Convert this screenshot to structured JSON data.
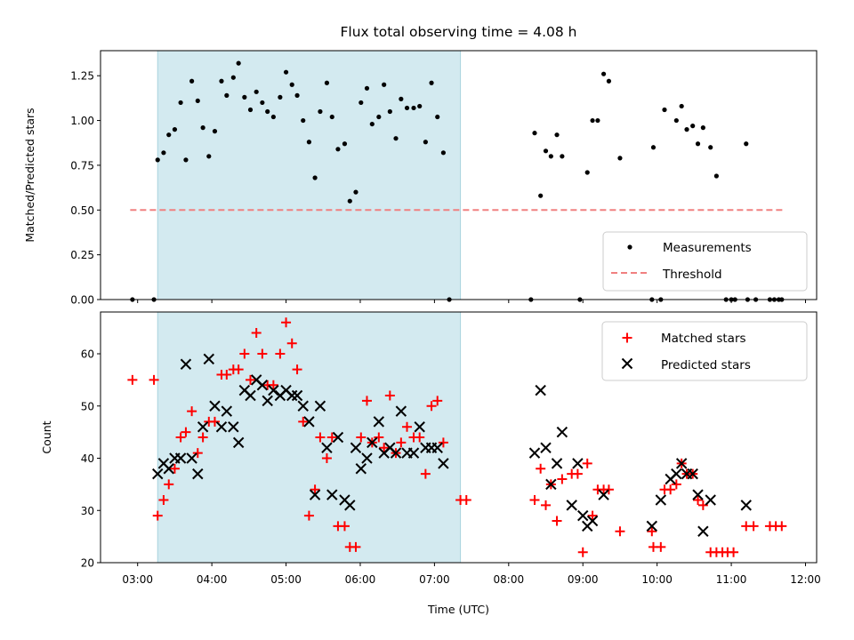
{
  "chart_data": [
    {
      "type": "scatter",
      "title": "Flux total observing time = 4.08 h",
      "xlabel": "",
      "ylabel": "Matched/Predicted stars",
      "xlim": [
        2.5,
        12.15
      ],
      "ylim": [
        0,
        1.39
      ],
      "xticks": [
        3,
        4,
        5,
        6,
        7,
        8,
        9,
        10,
        11,
        12
      ],
      "yticks": [
        0,
        0.25,
        0.5,
        0.75,
        1.0,
        1.25
      ],
      "ytick_labels": [
        "0.00",
        "0.25",
        "0.50",
        "0.75",
        "1.00",
        "1.25"
      ],
      "shaded_span": [
        3.27,
        7.35
      ],
      "shaded_color": "#d3eaf0",
      "threshold": {
        "y": 0.5,
        "x": [
          2.9,
          11.7
        ],
        "color": "#f08080"
      },
      "legend": [
        "Measurements",
        "Threshold"
      ],
      "legend_position": "lower-right",
      "series": [
        {
          "name": "Measurements",
          "marker": "dot",
          "color": "#000000",
          "points": [
            [
              2.93,
              0
            ],
            [
              3.22,
              0
            ],
            [
              3.27,
              0.78
            ],
            [
              3.35,
              0.82
            ],
            [
              3.42,
              0.92
            ],
            [
              3.5,
              0.95
            ],
            [
              3.58,
              1.1
            ],
            [
              3.65,
              0.78
            ],
            [
              3.73,
              1.22
            ],
            [
              3.81,
              1.11
            ],
            [
              3.88,
              0.96
            ],
            [
              3.96,
              0.8
            ],
            [
              4.04,
              0.94
            ],
            [
              4.13,
              1.22
            ],
            [
              4.2,
              1.14
            ],
            [
              4.29,
              1.24
            ],
            [
              4.36,
              1.32
            ],
            [
              4.44,
              1.13
            ],
            [
              4.52,
              1.06
            ],
            [
              4.6,
              1.16
            ],
            [
              4.68,
              1.1
            ],
            [
              4.75,
              1.05
            ],
            [
              4.83,
              1.02
            ],
            [
              4.92,
              1.13
            ],
            [
              5.0,
              1.27
            ],
            [
              5.08,
              1.2
            ],
            [
              5.15,
              1.14
            ],
            [
              5.23,
              1.0
            ],
            [
              5.31,
              0.88
            ],
            [
              5.39,
              0.68
            ],
            [
              5.46,
              1.05
            ],
            [
              5.55,
              1.21
            ],
            [
              5.62,
              1.02
            ],
            [
              5.7,
              0.84
            ],
            [
              5.79,
              0.87
            ],
            [
              5.86,
              0.55
            ],
            [
              5.94,
              0.6
            ],
            [
              6.01,
              1.1
            ],
            [
              6.09,
              1.18
            ],
            [
              6.16,
              0.98
            ],
            [
              6.25,
              1.02
            ],
            [
              6.32,
              1.2
            ],
            [
              6.4,
              1.05
            ],
            [
              6.48,
              0.9
            ],
            [
              6.55,
              1.12
            ],
            [
              6.63,
              1.07
            ],
            [
              6.72,
              1.07
            ],
            [
              6.8,
              1.08
            ],
            [
              6.88,
              0.88
            ],
            [
              6.96,
              1.21
            ],
            [
              7.04,
              1.02
            ],
            [
              7.12,
              0.82
            ],
            [
              7.2,
              0
            ],
            [
              8.3,
              0
            ],
            [
              8.35,
              0.93
            ],
            [
              8.43,
              0.58
            ],
            [
              8.5,
              0.83
            ],
            [
              8.57,
              0.8
            ],
            [
              8.65,
              0.92
            ],
            [
              8.72,
              0.8
            ],
            [
              8.96,
              0
            ],
            [
              9.06,
              0.71
            ],
            [
              9.13,
              1.0
            ],
            [
              9.2,
              1.0
            ],
            [
              9.28,
              1.26
            ],
            [
              9.35,
              1.22
            ],
            [
              9.5,
              0.79
            ],
            [
              9.93,
              0
            ],
            [
              9.95,
              0.85
            ],
            [
              10.05,
              0
            ],
            [
              10.1,
              1.06
            ],
            [
              10.26,
              1.0
            ],
            [
              10.33,
              1.08
            ],
            [
              10.4,
              0.95
            ],
            [
              10.48,
              0.97
            ],
            [
              10.55,
              0.87
            ],
            [
              10.62,
              0.96
            ],
            [
              10.72,
              0.85
            ],
            [
              10.8,
              0.69
            ],
            [
              10.93,
              0
            ],
            [
              11.0,
              0
            ],
            [
              11.05,
              0
            ],
            [
              11.2,
              0.87
            ],
            [
              11.22,
              0
            ],
            [
              11.33,
              0
            ],
            [
              11.52,
              0
            ],
            [
              11.58,
              0
            ],
            [
              11.64,
              0
            ],
            [
              11.68,
              0
            ]
          ]
        }
      ]
    },
    {
      "type": "scatter",
      "title": "",
      "xlabel": "Time (UTC)",
      "ylabel": "Count",
      "xlim": [
        2.5,
        12.15
      ],
      "ylim": [
        20,
        68
      ],
      "xticks": [
        3,
        4,
        5,
        6,
        7,
        8,
        9,
        10,
        11,
        12
      ],
      "xtick_labels": [
        "03:00",
        "04:00",
        "05:00",
        "06:00",
        "07:00",
        "08:00",
        "09:00",
        "10:00",
        "11:00",
        "12:00"
      ],
      "yticks": [
        20,
        30,
        40,
        50,
        60
      ],
      "ytick_labels": [
        "20",
        "30",
        "40",
        "50",
        "60"
      ],
      "shaded_span": [
        3.27,
        7.35
      ],
      "shaded_color": "#d3eaf0",
      "legend": [
        "Matched stars",
        "Predicted stars"
      ],
      "legend_position": "upper-right",
      "series": [
        {
          "name": "Matched stars",
          "marker": "plus",
          "color": "#ff0000",
          "points": [
            [
              2.93,
              55
            ],
            [
              3.22,
              55
            ],
            [
              3.27,
              29
            ],
            [
              3.35,
              32
            ],
            [
              3.42,
              35
            ],
            [
              3.5,
              38
            ],
            [
              3.58,
              44
            ],
            [
              3.65,
              45
            ],
            [
              3.73,
              49
            ],
            [
              3.81,
              41
            ],
            [
              3.88,
              44
            ],
            [
              3.96,
              47
            ],
            [
              4.04,
              47
            ],
            [
              4.13,
              56
            ],
            [
              4.2,
              56
            ],
            [
              4.29,
              57
            ],
            [
              4.36,
              57
            ],
            [
              4.44,
              60
            ],
            [
              4.52,
              55
            ],
            [
              4.6,
              64
            ],
            [
              4.68,
              60
            ],
            [
              4.75,
              54
            ],
            [
              4.83,
              54
            ],
            [
              4.92,
              60
            ],
            [
              5.0,
              66
            ],
            [
              5.08,
              62
            ],
            [
              5.15,
              57
            ],
            [
              5.23,
              47
            ],
            [
              5.31,
              29
            ],
            [
              5.39,
              34
            ],
            [
              5.46,
              44
            ],
            [
              5.55,
              40
            ],
            [
              5.62,
              44
            ],
            [
              5.7,
              27
            ],
            [
              5.79,
              27
            ],
            [
              5.86,
              23
            ],
            [
              5.94,
              23
            ],
            [
              6.01,
              44
            ],
            [
              6.09,
              51
            ],
            [
              6.16,
              43
            ],
            [
              6.25,
              44
            ],
            [
              6.32,
              42
            ],
            [
              6.4,
              52
            ],
            [
              6.48,
              41
            ],
            [
              6.55,
              43
            ],
            [
              6.63,
              46
            ],
            [
              6.72,
              44
            ],
            [
              6.8,
              44
            ],
            [
              6.88,
              37
            ],
            [
              6.96,
              50
            ],
            [
              7.04,
              51
            ],
            [
              7.12,
              43
            ],
            [
              7.35,
              32
            ],
            [
              7.43,
              32
            ],
            [
              8.35,
              32
            ],
            [
              8.43,
              38
            ],
            [
              8.5,
              31
            ],
            [
              8.57,
              35
            ],
            [
              8.65,
              28
            ],
            [
              8.72,
              36
            ],
            [
              8.85,
              37
            ],
            [
              8.93,
              37
            ],
            [
              9.0,
              22
            ],
            [
              9.06,
              39
            ],
            [
              9.13,
              29
            ],
            [
              9.2,
              34
            ],
            [
              9.28,
              34
            ],
            [
              9.35,
              34
            ],
            [
              9.5,
              26
            ],
            [
              9.93,
              26
            ],
            [
              9.95,
              23
            ],
            [
              10.05,
              23
            ],
            [
              10.1,
              34
            ],
            [
              10.18,
              34
            ],
            [
              10.26,
              35
            ],
            [
              10.33,
              39
            ],
            [
              10.4,
              37
            ],
            [
              10.48,
              37
            ],
            [
              10.55,
              32
            ],
            [
              10.62,
              31
            ],
            [
              10.72,
              22
            ],
            [
              10.8,
              22
            ],
            [
              10.88,
              22
            ],
            [
              10.95,
              22
            ],
            [
              11.03,
              22
            ],
            [
              11.2,
              27
            ],
            [
              11.3,
              27
            ],
            [
              11.52,
              27
            ],
            [
              11.6,
              27
            ],
            [
              11.68,
              27
            ]
          ]
        },
        {
          "name": "Predicted stars",
          "marker": "x",
          "color": "#000000",
          "points": [
            [
              3.27,
              37
            ],
            [
              3.35,
              39
            ],
            [
              3.42,
              38
            ],
            [
              3.5,
              40
            ],
            [
              3.58,
              40
            ],
            [
              3.65,
              58
            ],
            [
              3.73,
              40
            ],
            [
              3.81,
              37
            ],
            [
              3.88,
              46
            ],
            [
              3.96,
              59
            ],
            [
              4.04,
              50
            ],
            [
              4.13,
              46
            ],
            [
              4.2,
              49
            ],
            [
              4.29,
              46
            ],
            [
              4.36,
              43
            ],
            [
              4.44,
              53
            ],
            [
              4.52,
              52
            ],
            [
              4.6,
              55
            ],
            [
              4.68,
              54
            ],
            [
              4.75,
              51
            ],
            [
              4.83,
              53
            ],
            [
              4.92,
              52
            ],
            [
              5.0,
              53
            ],
            [
              5.08,
              52
            ],
            [
              5.15,
              52
            ],
            [
              5.23,
              50
            ],
            [
              5.31,
              47
            ],
            [
              5.39,
              33
            ],
            [
              5.46,
              50
            ],
            [
              5.55,
              42
            ],
            [
              5.62,
              33
            ],
            [
              5.7,
              44
            ],
            [
              5.79,
              32
            ],
            [
              5.86,
              31
            ],
            [
              5.94,
              42
            ],
            [
              6.01,
              38
            ],
            [
              6.09,
              40
            ],
            [
              6.16,
              43
            ],
            [
              6.25,
              47
            ],
            [
              6.32,
              41
            ],
            [
              6.4,
              42
            ],
            [
              6.48,
              41
            ],
            [
              6.55,
              49
            ],
            [
              6.63,
              41
            ],
            [
              6.72,
              41
            ],
            [
              6.8,
              46
            ],
            [
              6.88,
              42
            ],
            [
              6.96,
              42
            ],
            [
              7.04,
              42
            ],
            [
              7.12,
              39
            ],
            [
              8.35,
              41
            ],
            [
              8.43,
              53
            ],
            [
              8.5,
              42
            ],
            [
              8.57,
              35
            ],
            [
              8.65,
              39
            ],
            [
              8.72,
              45
            ],
            [
              8.85,
              31
            ],
            [
              8.93,
              39
            ],
            [
              9.0,
              29
            ],
            [
              9.06,
              27
            ],
            [
              9.13,
              28
            ],
            [
              9.28,
              33
            ],
            [
              9.93,
              27
            ],
            [
              10.05,
              32
            ],
            [
              10.18,
              36
            ],
            [
              10.26,
              37
            ],
            [
              10.33,
              39
            ],
            [
              10.4,
              37
            ],
            [
              10.48,
              37
            ],
            [
              10.55,
              33
            ],
            [
              10.62,
              26
            ],
            [
              10.72,
              32
            ],
            [
              11.2,
              31
            ]
          ]
        }
      ]
    }
  ]
}
